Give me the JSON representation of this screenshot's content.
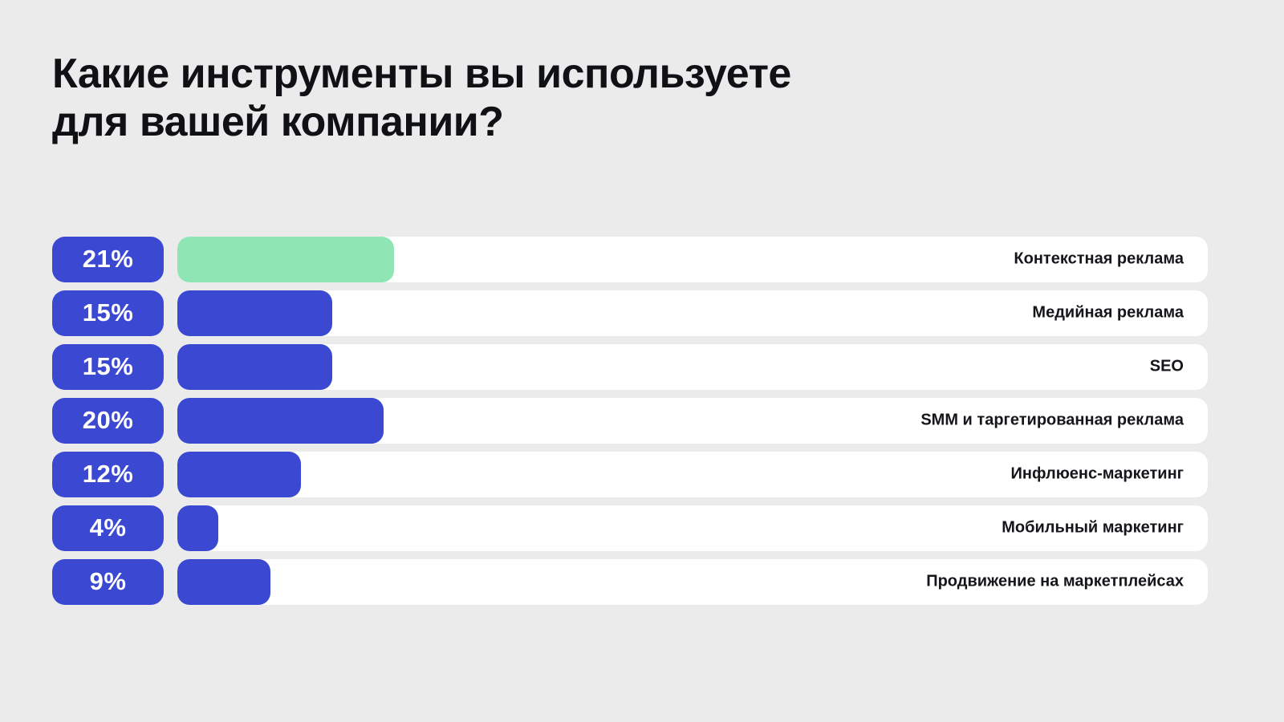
{
  "title": "Какие инструменты вы используете\nдля вашей компании?",
  "chart_data": {
    "type": "bar",
    "orientation": "horizontal",
    "title": "Какие инструменты вы используете для вашей компании?",
    "categories": [
      "Контекстная реклама",
      "Медийная реклама",
      "SEO",
      "SMM и таргетированная реклама",
      "Инфлюенс-маркетинг",
      "Мобильный маркетинг",
      "Продвижение на маркетплейсах"
    ],
    "values": [
      21,
      15,
      15,
      20,
      12,
      4,
      9
    ],
    "value_suffix": "%",
    "highlight_index": 0,
    "xlim": [
      0,
      100
    ],
    "grid": false,
    "legend": false,
    "value_label_position": "left-badge",
    "category_label_position": "right-inside-track"
  },
  "colors": {
    "background": "#ebebeb",
    "accent_blue": "#3b48d1",
    "highlight_green": "#8fe6b4",
    "track_white": "#ffffff",
    "text_dark": "#101114",
    "badge_text": "#ffffff"
  }
}
